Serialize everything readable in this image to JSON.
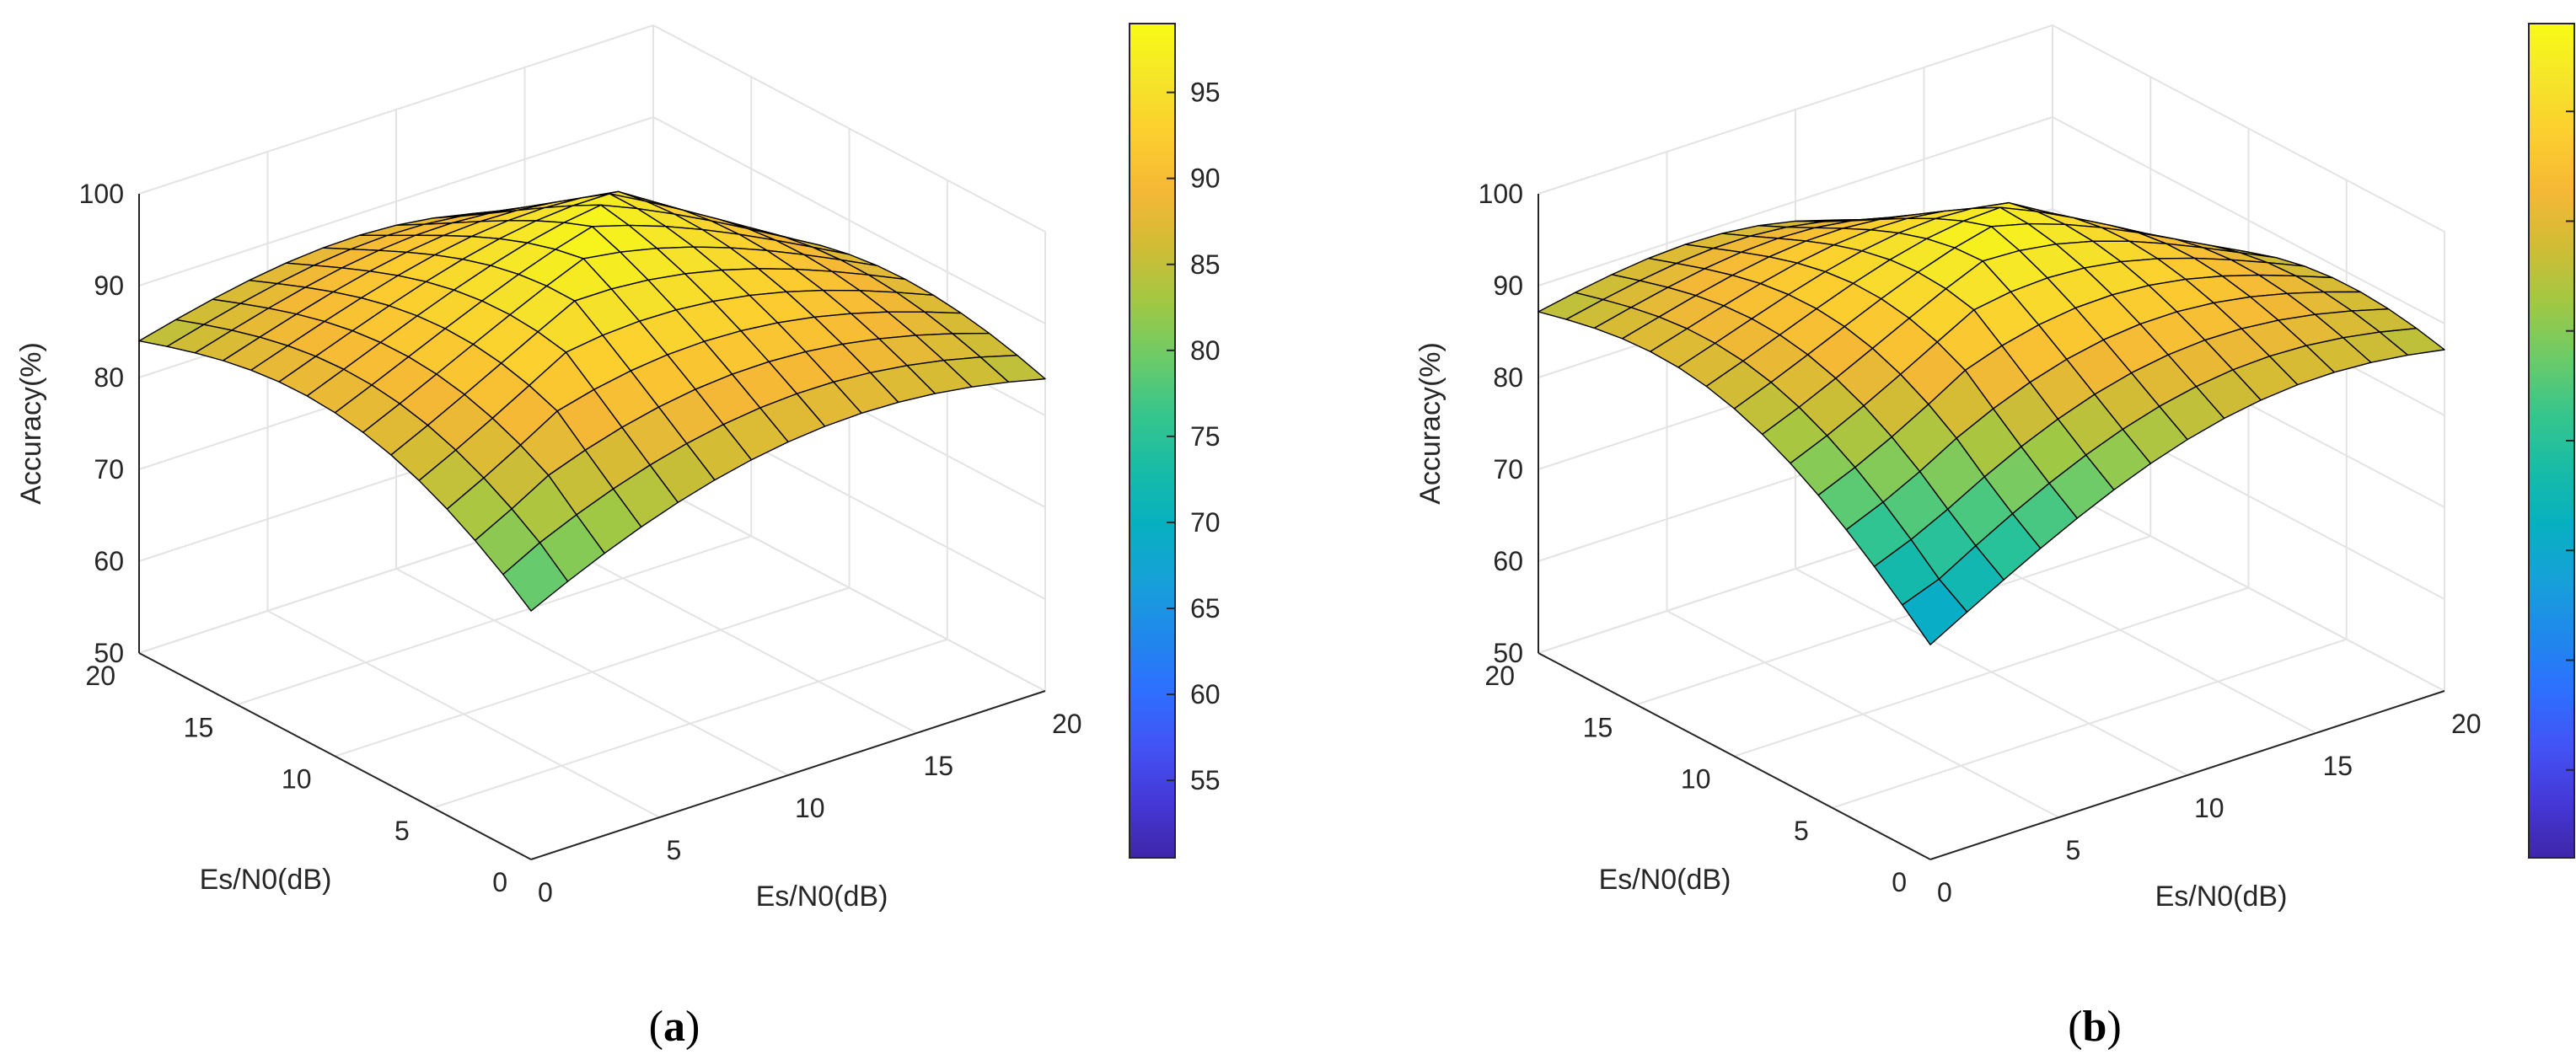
{
  "chart_data": [
    {
      "type": "surface",
      "caption_label": "a",
      "zlabel": "Accuracy(%)",
      "xlabel": "Es/N0(dB)",
      "ylabel": "Es/N0(dB)",
      "x_ticks": [
        "0",
        "5",
        "10",
        "15",
        "20"
      ],
      "y_ticks": [
        "0",
        "5",
        "10",
        "15",
        "20"
      ],
      "z_ticks": [
        "50",
        "60",
        "70",
        "80",
        "90",
        "100"
      ],
      "zlim": [
        50,
        100
      ],
      "xlim": [
        0,
        20
      ],
      "ylim": [
        0,
        20
      ],
      "colorbar": {
        "min": 50.5,
        "max": 99,
        "ticks": [
          "55",
          "60",
          "65",
          "70",
          "75",
          "80",
          "85",
          "90",
          "95"
        ]
      },
      "surface": {
        "base": 50.5,
        "peak": 98.5,
        "sigma": 13,
        "corner_x0_y20": 79,
        "corner_x20_y0": 61
      }
    },
    {
      "type": "surface",
      "caption_label": "b",
      "zlabel": "Accuracy(%)",
      "xlabel": "Es/N0(dB)",
      "ylabel": "Es/N0(dB)",
      "x_ticks": [
        "0",
        "5",
        "10",
        "15",
        "20"
      ],
      "y_ticks": [
        "0",
        "5",
        "10",
        "15",
        "20"
      ],
      "z_ticks": [
        "50",
        "60",
        "70",
        "80",
        "90",
        "100"
      ],
      "zlim": [
        50,
        100
      ],
      "xlim": [
        0,
        20
      ],
      "ylim": [
        0,
        20
      ],
      "colorbar": {
        "min": 61,
        "max": 99,
        "ticks": [
          "65",
          "70",
          "75",
          "80",
          "85",
          "90",
          "95"
        ]
      },
      "surface": {
        "base": 61,
        "peak": 98.5,
        "sigma": 9.5,
        "corner_x0_y20": 86,
        "corner_x20_y0": 74
      }
    }
  ],
  "colors": {
    "parula": [
      "#3e26a8",
      "#4538d7",
      "#4353f5",
      "#2e6ffe",
      "#1f89eb",
      "#17a1d8",
      "#06b0c0",
      "#19bca7",
      "#37c68c",
      "#6dcb68",
      "#a2c843",
      "#d1bc35",
      "#f5b836",
      "#fcce2f",
      "#f5e529",
      "#f9fb15"
    ],
    "axis": "#262626",
    "grid": "#e3e3e3",
    "edge": "#000000"
  }
}
